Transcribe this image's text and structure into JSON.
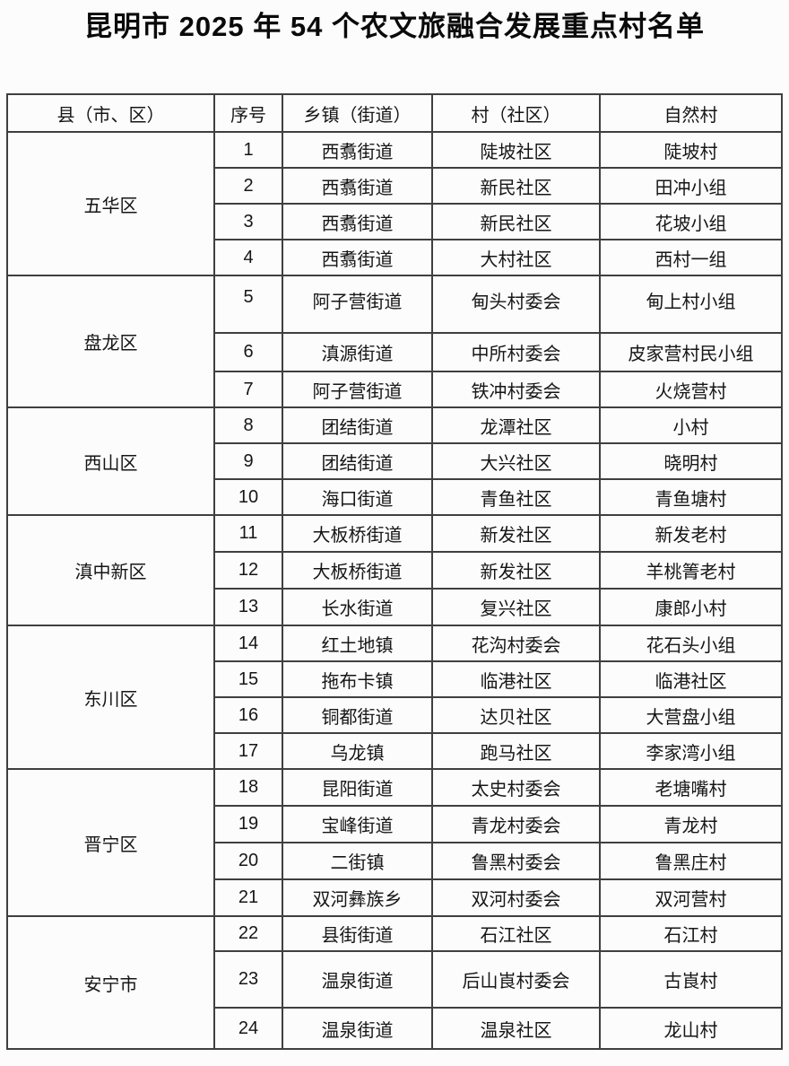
{
  "page": {
    "title": "昆明市 2025 年 54 个农文旅融合发展重点村名单"
  },
  "colors": {
    "text": "#161616",
    "border": "#3f3f3f",
    "background": "#fcfcfc"
  },
  "table": {
    "headers": [
      "县（市、区）",
      "序号",
      "乡镇（街道）",
      "村（社区）",
      "自然村"
    ],
    "groups": [
      {
        "district": "五华区",
        "rows": [
          {
            "no": "1",
            "town": "西翥街道",
            "village": "陡坡社区",
            "natural_village": "陡坡村"
          },
          {
            "no": "2",
            "town": "西翥街道",
            "village": "新民社区",
            "natural_village": "田冲小组"
          },
          {
            "no": "3",
            "town": "西翥街道",
            "village": "新民社区",
            "natural_village": "花坡小组"
          },
          {
            "no": "4",
            "town": "西翥街道",
            "village": "大村社区",
            "natural_village": "西村一组"
          }
        ]
      },
      {
        "district": "盘龙区",
        "rows": [
          {
            "no": "5",
            "town": "阿子营街道",
            "village": "甸头村委会",
            "natural_village": "甸上村小组"
          },
          {
            "no": "6",
            "town": "滇源街道",
            "village": "中所村委会",
            "natural_village": "皮家营村民小组"
          },
          {
            "no": "7",
            "town": "阿子营街道",
            "village": "铁冲村委会",
            "natural_village": "火烧营村"
          }
        ]
      },
      {
        "district": "西山区",
        "rows": [
          {
            "no": "8",
            "town": "团结街道",
            "village": "龙潭社区",
            "natural_village": "小村"
          },
          {
            "no": "9",
            "town": "团结街道",
            "village": "大兴社区",
            "natural_village": "晓明村"
          },
          {
            "no": "10",
            "town": "海口街道",
            "village": "青鱼社区",
            "natural_village": "青鱼塘村"
          }
        ]
      },
      {
        "district": "滇中新区",
        "rows": [
          {
            "no": "11",
            "town": "大板桥街道",
            "village": "新发社区",
            "natural_village": "新发老村"
          },
          {
            "no": "12",
            "town": "大板桥街道",
            "village": "新发社区",
            "natural_village": "羊桃箐老村"
          },
          {
            "no": "13",
            "town": "长水街道",
            "village": "复兴社区",
            "natural_village": "康郎小村"
          }
        ]
      },
      {
        "district": "东川区",
        "rows": [
          {
            "no": "14",
            "town": "红土地镇",
            "village": "花沟村委会",
            "natural_village": "花石头小组"
          },
          {
            "no": "15",
            "town": "拖布卡镇",
            "village": "临港社区",
            "natural_village": "临港社区"
          },
          {
            "no": "16",
            "town": "铜都街道",
            "village": "达贝社区",
            "natural_village": "大营盘小组"
          },
          {
            "no": "17",
            "town": "乌龙镇",
            "village": "跑马社区",
            "natural_village": "李家湾小组"
          }
        ]
      },
      {
        "district": "晋宁区",
        "rows": [
          {
            "no": "18",
            "town": "昆阳街道",
            "village": "太史村委会",
            "natural_village": "老塘嘴村"
          },
          {
            "no": "19",
            "town": "宝峰街道",
            "village": "青龙村委会",
            "natural_village": "青龙村"
          },
          {
            "no": "20",
            "town": "二街镇",
            "village": "鲁黑村委会",
            "natural_village": "鲁黑庄村"
          },
          {
            "no": "21",
            "town": "双河彝族乡",
            "village": "双河村委会",
            "natural_village": "双河营村"
          }
        ]
      },
      {
        "district": "安宁市",
        "rows": [
          {
            "no": "22",
            "town": "县街街道",
            "village": "石江社区",
            "natural_village": "石江村"
          },
          {
            "no": "23",
            "town": "温泉街道",
            "village": "后山崀村委会",
            "natural_village": "古崀村"
          },
          {
            "no": "24",
            "town": "温泉街道",
            "village": "温泉社区",
            "natural_village": "龙山村"
          }
        ]
      }
    ]
  }
}
